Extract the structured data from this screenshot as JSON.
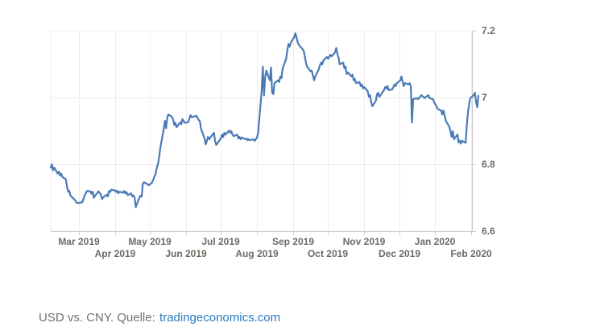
{
  "caption": {
    "text": "USD vs. CNY. Quelle:",
    "link": "tradingeconomics.com",
    "text_color": "#6e7276",
    "link_color": "#2a7ac0"
  },
  "chart_data": {
    "type": "line",
    "series_name": "USD vs. CNY exchange rate",
    "y_min": 6.6,
    "y_max": 7.2,
    "x_domain": [
      "2019-02-05",
      "2020-02-07"
    ],
    "grid": true,
    "legend": "none",
    "y_axis_side": "right",
    "colors": {
      "line": "#4a7ab5",
      "grid": "#ececec",
      "axis": "#cccccc",
      "label": "#6e6a64"
    },
    "y_ticks": [
      {
        "label": "7.2",
        "value": 7.2
      },
      {
        "label": "7",
        "value": 7.0
      },
      {
        "label": "6.8",
        "value": 6.8
      },
      {
        "label": "6.6",
        "value": 6.6
      }
    ],
    "x_ticks": [
      {
        "label": "Mar 2019",
        "date": "2019-03-01",
        "row": 1
      },
      {
        "label": "Apr 2019",
        "date": "2019-04-01",
        "row": 2
      },
      {
        "label": "May 2019",
        "date": "2019-05-01",
        "row": 1
      },
      {
        "label": "Jun 2019",
        "date": "2019-06-01",
        "row": 2
      },
      {
        "label": "Jul 2019",
        "date": "2019-07-01",
        "row": 1
      },
      {
        "label": "Aug 2019",
        "date": "2019-08-01",
        "row": 2
      },
      {
        "label": "Sep 2019",
        "date": "2019-09-01",
        "row": 1
      },
      {
        "label": "Oct 2019",
        "date": "2019-10-01",
        "row": 2
      },
      {
        "label": "Nov 2019",
        "date": "2019-11-01",
        "row": 1
      },
      {
        "label": "Dec 2019",
        "date": "2019-12-01",
        "row": 2
      },
      {
        "label": "Jan 2020",
        "date": "2020-01-01",
        "row": 1
      },
      {
        "label": "Feb 2020",
        "date": "2020-02-01",
        "row": 2
      }
    ],
    "points": [
      [
        "2019-02-05",
        6.79
      ],
      [
        "2019-02-06",
        6.8
      ],
      [
        "2019-02-07",
        6.782
      ],
      [
        "2019-02-08",
        6.79
      ],
      [
        "2019-02-11",
        6.772
      ],
      [
        "2019-02-12",
        6.778
      ],
      [
        "2019-02-13",
        6.766
      ],
      [
        "2019-02-14",
        6.772
      ],
      [
        "2019-02-15",
        6.762
      ],
      [
        "2019-02-18",
        6.755
      ],
      [
        "2019-02-19",
        6.732
      ],
      [
        "2019-02-20",
        6.718
      ],
      [
        "2019-02-21",
        6.72
      ],
      [
        "2019-02-22",
        6.706
      ],
      [
        "2019-02-25",
        6.696
      ],
      [
        "2019-02-26",
        6.692
      ],
      [
        "2019-02-27",
        6.686
      ],
      [
        "2019-02-28",
        6.684
      ],
      [
        "2019-03-01",
        6.684
      ],
      [
        "2019-03-04",
        6.686
      ],
      [
        "2019-03-05",
        6.696
      ],
      [
        "2019-03-06",
        6.706
      ],
      [
        "2019-03-08",
        6.72
      ],
      [
        "2019-03-11",
        6.719
      ],
      [
        "2019-03-12",
        6.712
      ],
      [
        "2019-03-13",
        6.718
      ],
      [
        "2019-03-14",
        6.7
      ],
      [
        "2019-03-15",
        6.706
      ],
      [
        "2019-03-18",
        6.719
      ],
      [
        "2019-03-19",
        6.714
      ],
      [
        "2019-03-20",
        6.71
      ],
      [
        "2019-03-21",
        6.696
      ],
      [
        "2019-03-22",
        6.701
      ],
      [
        "2019-03-25",
        6.709
      ],
      [
        "2019-03-26",
        6.704
      ],
      [
        "2019-03-27",
        6.72
      ],
      [
        "2019-03-28",
        6.717
      ],
      [
        "2019-03-29",
        6.724
      ],
      [
        "2019-04-01",
        6.722
      ],
      [
        "2019-04-02",
        6.717
      ],
      [
        "2019-04-03",
        6.721
      ],
      [
        "2019-04-04",
        6.713
      ],
      [
        "2019-04-05",
        6.718
      ],
      [
        "2019-04-08",
        6.715
      ],
      [
        "2019-04-09",
        6.72
      ],
      [
        "2019-04-10",
        6.713
      ],
      [
        "2019-04-11",
        6.717
      ],
      [
        "2019-04-12",
        6.708
      ],
      [
        "2019-04-15",
        6.713
      ],
      [
        "2019-04-16",
        6.704
      ],
      [
        "2019-04-17",
        6.707
      ],
      [
        "2019-04-18",
        6.7
      ],
      [
        "2019-04-19",
        6.672
      ],
      [
        "2019-04-22",
        6.7
      ],
      [
        "2019-04-23",
        6.706
      ],
      [
        "2019-04-24",
        6.703
      ],
      [
        "2019-04-25",
        6.742
      ],
      [
        "2019-04-26",
        6.746
      ],
      [
        "2019-04-29",
        6.741
      ],
      [
        "2019-04-30",
        6.737
      ],
      [
        "2019-05-02",
        6.742
      ],
      [
        "2019-05-03",
        6.746
      ],
      [
        "2019-05-06",
        6.772
      ],
      [
        "2019-05-07",
        6.79
      ],
      [
        "2019-05-08",
        6.8
      ],
      [
        "2019-05-09",
        6.822
      ],
      [
        "2019-05-10",
        6.848
      ],
      [
        "2019-05-13",
        6.906
      ],
      [
        "2019-05-14",
        6.93
      ],
      [
        "2019-05-15",
        6.908
      ],
      [
        "2019-05-16",
        6.94
      ],
      [
        "2019-05-17",
        6.949
      ],
      [
        "2019-05-20",
        6.942
      ],
      [
        "2019-05-21",
        6.935
      ],
      [
        "2019-05-22",
        6.918
      ],
      [
        "2019-05-23",
        6.924
      ],
      [
        "2019-05-24",
        6.911
      ],
      [
        "2019-05-27",
        6.925
      ],
      [
        "2019-05-28",
        6.92
      ],
      [
        "2019-05-29",
        6.935
      ],
      [
        "2019-05-31",
        6.924
      ],
      [
        "2019-06-03",
        6.926
      ],
      [
        "2019-06-05",
        6.947
      ],
      [
        "2019-06-06",
        6.941
      ],
      [
        "2019-06-10",
        6.945
      ],
      [
        "2019-06-12",
        6.932
      ],
      [
        "2019-06-13",
        6.929
      ],
      [
        "2019-06-14",
        6.906
      ],
      [
        "2019-06-17",
        6.877
      ],
      [
        "2019-06-18",
        6.86
      ],
      [
        "2019-06-19",
        6.87
      ],
      [
        "2019-06-20",
        6.882
      ],
      [
        "2019-06-21",
        6.875
      ],
      [
        "2019-06-24",
        6.89
      ],
      [
        "2019-06-25",
        6.894
      ],
      [
        "2019-06-26",
        6.87
      ],
      [
        "2019-06-27",
        6.858
      ],
      [
        "2019-06-28",
        6.863
      ],
      [
        "2019-07-01",
        6.877
      ],
      [
        "2019-07-02",
        6.889
      ],
      [
        "2019-07-03",
        6.882
      ],
      [
        "2019-07-04",
        6.894
      ],
      [
        "2019-07-05",
        6.889
      ],
      [
        "2019-07-08",
        6.901
      ],
      [
        "2019-07-09",
        6.894
      ],
      [
        "2019-07-10",
        6.899
      ],
      [
        "2019-07-11",
        6.889
      ],
      [
        "2019-07-12",
        6.884
      ],
      [
        "2019-07-15",
        6.889
      ],
      [
        "2019-07-16",
        6.877
      ],
      [
        "2019-07-17",
        6.882
      ],
      [
        "2019-07-18",
        6.875
      ],
      [
        "2019-07-19",
        6.88
      ],
      [
        "2019-07-22",
        6.875
      ],
      [
        "2019-07-23",
        6.877
      ],
      [
        "2019-07-24",
        6.872
      ],
      [
        "2019-07-25",
        6.875
      ],
      [
        "2019-07-26",
        6.872
      ],
      [
        "2019-07-29",
        6.875
      ],
      [
        "2019-07-30",
        6.87
      ],
      [
        "2019-07-31",
        6.875
      ],
      [
        "2019-08-01",
        6.88
      ],
      [
        "2019-08-02",
        6.894
      ],
      [
        "2019-08-05",
        7.02
      ],
      [
        "2019-08-06",
        7.092
      ],
      [
        "2019-08-07",
        7.006
      ],
      [
        "2019-08-08",
        7.06
      ],
      [
        "2019-08-09",
        7.08
      ],
      [
        "2019-08-12",
        7.051
      ],
      [
        "2019-08-13",
        7.09
      ],
      [
        "2019-08-14",
        7.014
      ],
      [
        "2019-08-15",
        7.01
      ],
      [
        "2019-08-16",
        7.043
      ],
      [
        "2019-08-19",
        7.051
      ],
      [
        "2019-08-20",
        7.046
      ],
      [
        "2019-08-21",
        7.063
      ],
      [
        "2019-08-22",
        7.058
      ],
      [
        "2019-08-23",
        7.087
      ],
      [
        "2019-08-26",
        7.116
      ],
      [
        "2019-08-27",
        7.14
      ],
      [
        "2019-08-28",
        7.16
      ],
      [
        "2019-08-29",
        7.152
      ],
      [
        "2019-08-30",
        7.164
      ],
      [
        "2019-09-02",
        7.181
      ],
      [
        "2019-09-03",
        7.192
      ],
      [
        "2019-09-04",
        7.178
      ],
      [
        "2019-09-05",
        7.164
      ],
      [
        "2019-09-06",
        7.157
      ],
      [
        "2019-09-09",
        7.145
      ],
      [
        "2019-09-10",
        7.14
      ],
      [
        "2019-09-11",
        7.123
      ],
      [
        "2019-09-12",
        7.104
      ],
      [
        "2019-09-13",
        7.092
      ],
      [
        "2019-09-16",
        7.078
      ],
      [
        "2019-09-17",
        7.08
      ],
      [
        "2019-09-18",
        7.066
      ],
      [
        "2019-09-19",
        7.051
      ],
      [
        "2019-09-20",
        7.063
      ],
      [
        "2019-09-23",
        7.084
      ],
      [
        "2019-09-24",
        7.096
      ],
      [
        "2019-09-25",
        7.104
      ],
      [
        "2019-09-26",
        7.099
      ],
      [
        "2019-09-27",
        7.111
      ],
      [
        "2019-09-30",
        7.121
      ],
      [
        "2019-10-01",
        7.116
      ],
      [
        "2019-10-02",
        7.121
      ],
      [
        "2019-10-03",
        7.128
      ],
      [
        "2019-10-04",
        7.123
      ],
      [
        "2019-10-07",
        7.135
      ],
      [
        "2019-10-08",
        7.148
      ],
      [
        "2019-10-09",
        7.13
      ],
      [
        "2019-10-10",
        7.119
      ],
      [
        "2019-10-11",
        7.099
      ],
      [
        "2019-10-14",
        7.104
      ],
      [
        "2019-10-15",
        7.087
      ],
      [
        "2019-10-16",
        7.092
      ],
      [
        "2019-10-17",
        7.07
      ],
      [
        "2019-10-18",
        7.075
      ],
      [
        "2019-10-21",
        7.063
      ],
      [
        "2019-10-22",
        7.068
      ],
      [
        "2019-10-23",
        7.051
      ],
      [
        "2019-10-24",
        7.055
      ],
      [
        "2019-10-25",
        7.043
      ],
      [
        "2019-10-28",
        7.046
      ],
      [
        "2019-10-29",
        7.034
      ],
      [
        "2019-10-30",
        7.039
      ],
      [
        "2019-10-31",
        7.027
      ],
      [
        "2019-11-01",
        7.031
      ],
      [
        "2019-11-04",
        7.019
      ],
      [
        "2019-11-05",
        7.002
      ],
      [
        "2019-11-06",
        7.007
      ],
      [
        "2019-11-07",
        6.986
      ],
      [
        "2019-11-08",
        6.974
      ],
      [
        "2019-11-11",
        6.99
      ],
      [
        "2019-11-12",
        7.01
      ],
      [
        "2019-11-13",
        7.014
      ],
      [
        "2019-11-14",
        7.002
      ],
      [
        "2019-11-15",
        7.007
      ],
      [
        "2019-11-18",
        7.022
      ],
      [
        "2019-11-19",
        7.031
      ],
      [
        "2019-11-20",
        7.027
      ],
      [
        "2019-11-21",
        7.034
      ],
      [
        "2019-11-22",
        7.022
      ],
      [
        "2019-11-25",
        7.024
      ],
      [
        "2019-11-26",
        7.031
      ],
      [
        "2019-11-27",
        7.039
      ],
      [
        "2019-11-28",
        7.034
      ],
      [
        "2019-11-29",
        7.043
      ],
      [
        "2019-12-02",
        7.051
      ],
      [
        "2019-12-03",
        7.063
      ],
      [
        "2019-12-04",
        7.046
      ],
      [
        "2019-12-05",
        7.034
      ],
      [
        "2019-12-06",
        7.043
      ],
      [
        "2019-12-09",
        7.039
      ],
      [
        "2019-12-10",
        7.043
      ],
      [
        "2019-12-11",
        7.034
      ],
      [
        "2019-12-12",
        6.925
      ],
      [
        "2019-12-13",
        6.995
      ],
      [
        "2019-12-16",
        6.998
      ],
      [
        "2019-12-17",
        6.995
      ],
      [
        "2019-12-18",
        6.998
      ],
      [
        "2019-12-19",
        7.002
      ],
      [
        "2019-12-20",
        7.007
      ],
      [
        "2019-12-23",
        6.998
      ],
      [
        "2019-12-24",
        7.002
      ],
      [
        "2019-12-26",
        7.007
      ],
      [
        "2019-12-27",
        6.998
      ],
      [
        "2019-12-30",
        6.995
      ],
      [
        "2019-12-31",
        6.986
      ],
      [
        "2020-01-02",
        6.974
      ],
      [
        "2020-01-03",
        6.966
      ],
      [
        "2020-01-06",
        6.961
      ],
      [
        "2020-01-07",
        6.949
      ],
      [
        "2020-01-08",
        6.961
      ],
      [
        "2020-01-09",
        6.947
      ],
      [
        "2020-01-10",
        6.93
      ],
      [
        "2020-01-13",
        6.913
      ],
      [
        "2020-01-14",
        6.899
      ],
      [
        "2020-01-15",
        6.882
      ],
      [
        "2020-01-16",
        6.899
      ],
      [
        "2020-01-17",
        6.875
      ],
      [
        "2020-01-20",
        6.889
      ],
      [
        "2020-01-21",
        6.865
      ],
      [
        "2020-01-22",
        6.871
      ],
      [
        "2020-01-23",
        6.862
      ],
      [
        "2020-01-24",
        6.87
      ],
      [
        "2020-01-27",
        6.864
      ],
      [
        "2020-01-28",
        6.913
      ],
      [
        "2020-01-29",
        6.955
      ],
      [
        "2020-01-30",
        6.978
      ],
      [
        "2020-01-31",
        6.998
      ],
      [
        "2020-02-03",
        7.007
      ],
      [
        "2020-02-04",
        7.014
      ],
      [
        "2020-02-05",
        6.986
      ],
      [
        "2020-02-06",
        6.971
      ],
      [
        "2020-02-07",
        7.005
      ]
    ]
  }
}
